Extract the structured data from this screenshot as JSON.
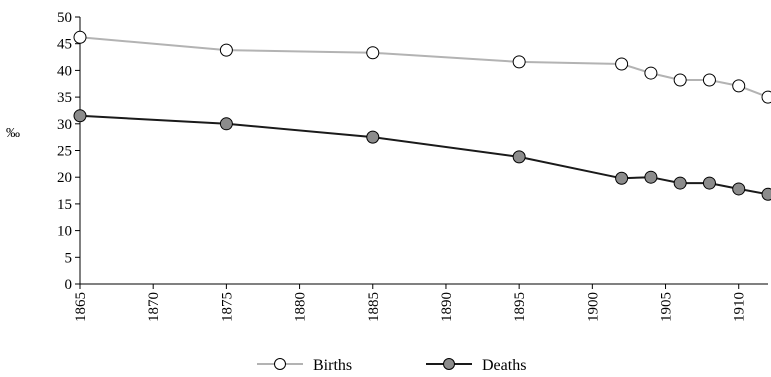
{
  "chart_data": {
    "type": "line",
    "title": "",
    "xlabel": "",
    "ylabel": "‰",
    "xlim": [
      1865,
      1912
    ],
    "ylim": [
      0,
      50
    ],
    "xticks": [
      1865,
      1870,
      1875,
      1880,
      1885,
      1890,
      1895,
      1900,
      1905,
      1910
    ],
    "yticks": [
      0,
      5,
      10,
      15,
      20,
      25,
      30,
      35,
      40,
      45,
      50
    ],
    "grid": false,
    "legend_position": "bottom",
    "series": [
      {
        "name": "Births",
        "color": "#b3b3b3",
        "marker_fill": "#ffffff",
        "x": [
          1865,
          1875,
          1885,
          1895,
          1902,
          1904,
          1906,
          1908,
          1910,
          1912
        ],
        "y": [
          46.2,
          43.8,
          43.3,
          41.6,
          41.2,
          39.5,
          38.2,
          38.2,
          37.1,
          35.0
        ]
      },
      {
        "name": "Deaths",
        "color": "#1a1a1a",
        "marker_fill": "#8c8c8c",
        "x": [
          1865,
          1875,
          1885,
          1895,
          1902,
          1904,
          1906,
          1908,
          1910,
          1912
        ],
        "y": [
          31.5,
          30.0,
          27.5,
          23.8,
          19.8,
          20.0,
          18.9,
          18.9,
          17.8,
          16.8
        ]
      }
    ]
  }
}
